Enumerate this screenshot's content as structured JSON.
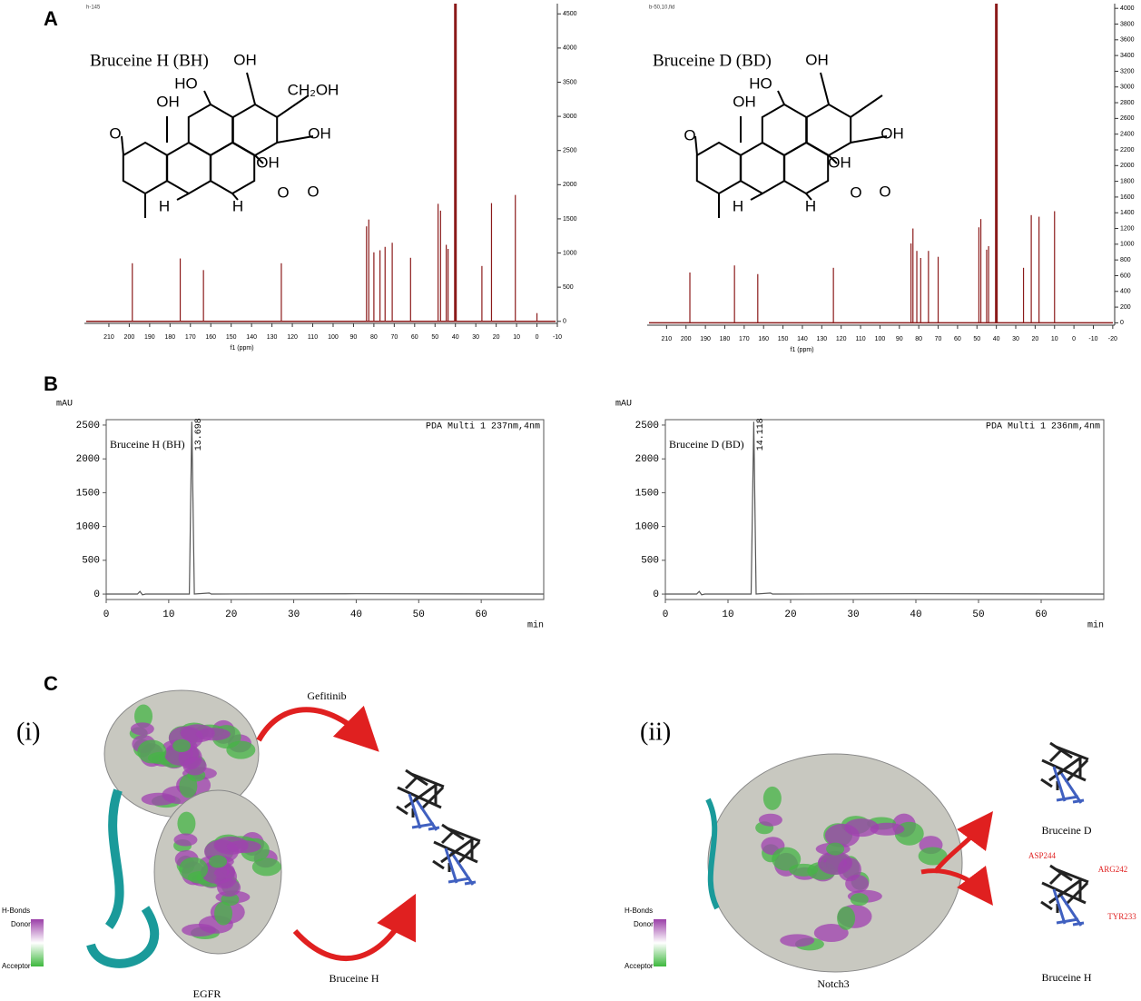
{
  "panel_labels": [
    "A",
    "B",
    "C"
  ],
  "chart_data": [
    {
      "type": "stem",
      "title": "Bruceine H (BH)",
      "header": "h-145",
      "xlabel": "f1 (ppm)",
      "color": "#8b1a1a",
      "x": [
        198.5,
        175.0,
        163.6,
        125.4,
        83.6,
        82.5,
        80.0,
        77.0,
        74.5,
        71.0,
        62.0,
        48.5,
        47.3,
        44.5,
        43.6,
        40.0,
        27.0,
        22.3,
        10.6,
        0.0
      ],
      "values": [
        850,
        920,
        750,
        850,
        1390,
        1490,
        1010,
        1040,
        1090,
        1150,
        930,
        1720,
        1620,
        1120,
        1060,
        4650,
        810,
        1730,
        1850,
        120
      ],
      "xlim": [
        222,
        -10
      ],
      "xticks": [
        210,
        200,
        190,
        180,
        170,
        160,
        150,
        140,
        130,
        120,
        110,
        100,
        90,
        80,
        70,
        60,
        50,
        40,
        30,
        20,
        10,
        0,
        -10
      ],
      "ylim": [
        -30,
        4650
      ],
      "yticks": [
        0,
        500,
        1000,
        1500,
        2000,
        2500,
        3000,
        3500,
        4000,
        4500
      ]
    },
    {
      "type": "stem",
      "title": "Bruceine D (BD)",
      "header": "b-50,10,fid",
      "xlabel": "f1 (ppm)",
      "color": "#8b1a1a",
      "x": [
        198.0,
        175.0,
        163.0,
        124.0,
        84.0,
        83.0,
        81.0,
        79.0,
        75.0,
        70.0,
        49.0,
        48.0,
        45.0,
        44.0,
        40.0,
        26.0,
        22.0,
        18.0,
        10.0
      ],
      "values": [
        640,
        730,
        620,
        700,
        1010,
        1200,
        915,
        825,
        915,
        840,
        1215,
        1320,
        930,
        975,
        4060,
        700,
        1370,
        1350,
        1420
      ],
      "xlim": [
        220,
        -21
      ],
      "xticks": [
        210,
        200,
        190,
        180,
        170,
        160,
        150,
        140,
        130,
        120,
        110,
        100,
        90,
        80,
        70,
        60,
        50,
        40,
        30,
        20,
        10,
        0,
        -10,
        -20
      ],
      "ylim": [
        -30,
        4060
      ],
      "yticks": [
        0,
        200,
        400,
        600,
        800,
        1000,
        1200,
        1400,
        1600,
        1800,
        2000,
        2200,
        2400,
        2600,
        2800,
        3000,
        3200,
        3400,
        3600,
        3800,
        4000
      ]
    },
    {
      "type": "line",
      "title": "Bruceine H (BH)",
      "ylabel": "mAU",
      "xlabel": "min",
      "annotation": "PDA Multi 1 237nm,4nm",
      "peak_label": "13.698",
      "color": "#555555",
      "x": [
        0,
        5,
        5.4,
        5.8,
        6.3,
        13.3,
        13.698,
        14.1,
        16.5,
        16.8,
        40,
        70
      ],
      "values": [
        0,
        0,
        40,
        -10,
        0,
        0,
        2550,
        0,
        15,
        0,
        5,
        0
      ],
      "xlim": [
        0,
        70
      ],
      "xticks": [
        0,
        10,
        20,
        30,
        40,
        50,
        60
      ],
      "ylim": [
        -80,
        2580
      ],
      "yticks": [
        0,
        500,
        1000,
        1500,
        2000,
        2500
      ]
    },
    {
      "type": "line",
      "title": "Bruceine D (BD)",
      "ylabel": "mAU",
      "xlabel": "min",
      "annotation": "PDA Multi 1 236nm,4nm",
      "peak_label": "14.118",
      "color": "#555555",
      "x": [
        0,
        5,
        5.4,
        5.8,
        6.3,
        13.7,
        14.118,
        14.5,
        16.8,
        17.1,
        40,
        70
      ],
      "values": [
        0,
        0,
        40,
        -10,
        0,
        0,
        2550,
        0,
        15,
        0,
        5,
        0
      ],
      "xlim": [
        0,
        70
      ],
      "xticks": [
        0,
        10,
        20,
        30,
        40,
        50,
        60
      ],
      "ylim": [
        -80,
        2580
      ],
      "yticks": [
        0,
        500,
        1000,
        1500,
        2000,
        2500
      ]
    }
  ],
  "structures": [
    {
      "labels": [
        "OH",
        "HO",
        "OH",
        "CH₂OH",
        "O",
        "OH",
        "OH",
        "H",
        "H",
        "O",
        "O"
      ]
    },
    {
      "labels": [
        "OH",
        "HO",
        "OH",
        "O",
        "OH",
        "OH",
        "H",
        "H",
        "O",
        "O"
      ]
    }
  ],
  "docking": [
    {
      "label": "(i)",
      "protein": "EGFR",
      "ligand_top": "Gefitinib",
      "ligand_bottom": "Bruceine H"
    },
    {
      "label": "(ii)",
      "protein": "Notch3",
      "ligand_top": "Bruceine D",
      "ligand_bottom": "Bruceine H",
      "residues": [
        "ASP244",
        "ARG242",
        "TYR233"
      ]
    }
  ],
  "hbond_legend": {
    "title": "H-Bonds",
    "top": "Donor",
    "bottom": "Acceptor"
  }
}
